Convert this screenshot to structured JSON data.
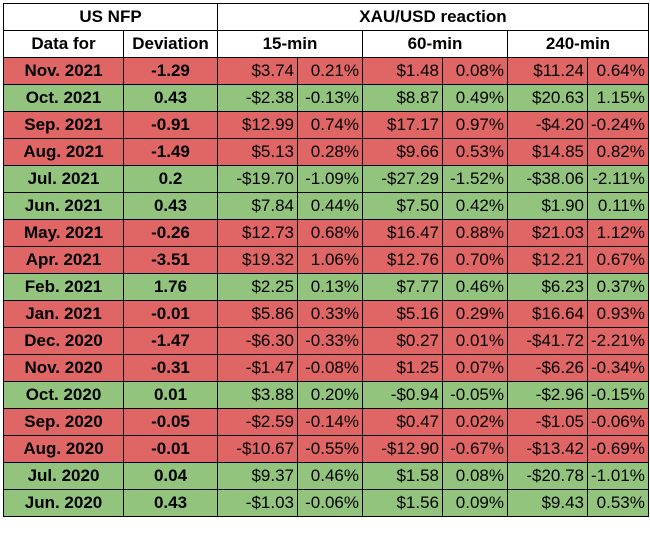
{
  "header": {
    "group_left": "US NFP",
    "group_right": "XAU/USD reaction",
    "col_date": "Data for",
    "col_deviation": "Deviation",
    "col_15": "15-min",
    "col_60": "60-min",
    "col_240": "240-min"
  },
  "colors": {
    "negative_row": "#e06666",
    "positive_row": "#93c47d"
  },
  "rows": [
    {
      "date": "Nov. 2021",
      "deviation": "-1.29",
      "d15": "$3.74",
      "p15": "0.21%",
      "d60": "$1.48",
      "p60": "0.08%",
      "d240": "$11.24",
      "p240": "0.64%",
      "tone": "red"
    },
    {
      "date": "Oct. 2021",
      "deviation": "0.43",
      "d15": "-$2.38",
      "p15": "-0.13%",
      "d60": "$8.87",
      "p60": "0.49%",
      "d240": "$20.63",
      "p240": "1.15%",
      "tone": "green"
    },
    {
      "date": "Sep. 2021",
      "deviation": "-0.91",
      "d15": "$12.99",
      "p15": "0.74%",
      "d60": "$17.17",
      "p60": "0.97%",
      "d240": "-$4.20",
      "p240": "-0.24%",
      "tone": "red"
    },
    {
      "date": "Aug. 2021",
      "deviation": "-1.49",
      "d15": "$5.13",
      "p15": "0.28%",
      "d60": "$9.66",
      "p60": "0.53%",
      "d240": "$14.85",
      "p240": "0.82%",
      "tone": "red"
    },
    {
      "date": "Jul. 2021",
      "deviation": "0.2",
      "d15": "-$19.70",
      "p15": "-1.09%",
      "d60": "-$27.29",
      "p60": "-1.52%",
      "d240": "-$38.06",
      "p240": "-2.11%",
      "tone": "green"
    },
    {
      "date": "Jun. 2021",
      "deviation": "0.43",
      "d15": "$7.84",
      "p15": "0.44%",
      "d60": "$7.50",
      "p60": "0.42%",
      "d240": "$1.90",
      "p240": "0.11%",
      "tone": "green"
    },
    {
      "date": "May. 2021",
      "deviation": "-0.26",
      "d15": "$12.73",
      "p15": "0.68%",
      "d60": "$16.47",
      "p60": "0.88%",
      "d240": "$21.03",
      "p240": "1.12%",
      "tone": "red"
    },
    {
      "date": "Apr. 2021",
      "deviation": "-3.51",
      "d15": "$19.32",
      "p15": "1.06%",
      "d60": "$12.76",
      "p60": "0.70%",
      "d240": "$12.21",
      "p240": "0.67%",
      "tone": "red"
    },
    {
      "date": "Feb. 2021",
      "deviation": "1.76",
      "d15": "$2.25",
      "p15": "0.13%",
      "d60": "$7.77",
      "p60": "0.46%",
      "d240": "$6.23",
      "p240": "0.37%",
      "tone": "green"
    },
    {
      "date": "Jan. 2021",
      "deviation": "-0.01",
      "d15": "$5.86",
      "p15": "0.33%",
      "d60": "$5.16",
      "p60": "0.29%",
      "d240": "$16.64",
      "p240": "0.93%",
      "tone": "red"
    },
    {
      "date": "Dec. 2020",
      "deviation": "-1.47",
      "d15": "-$6.30",
      "p15": "-0.33%",
      "d60": "$0.27",
      "p60": "0.01%",
      "d240": "-$41.72",
      "p240": "-2.21%",
      "tone": "red"
    },
    {
      "date": "Nov. 2020",
      "deviation": "-0.31",
      "d15": "-$1.47",
      "p15": "-0.08%",
      "d60": "$1.25",
      "p60": "0.07%",
      "d240": "-$6.26",
      "p240": "-0.34%",
      "tone": "red"
    },
    {
      "date": "Oct. 2020",
      "deviation": "0.01",
      "d15": "$3.88",
      "p15": "0.20%",
      "d60": "-$0.94",
      "p60": "-0.05%",
      "d240": "-$2.96",
      "p240": "-0.15%",
      "tone": "green"
    },
    {
      "date": "Sep. 2020",
      "deviation": "-0.05",
      "d15": "-$2.59",
      "p15": "-0.14%",
      "d60": "$0.47",
      "p60": "0.02%",
      "d240": "-$1.05",
      "p240": "-0.06%",
      "tone": "red"
    },
    {
      "date": "Aug. 2020",
      "deviation": "-0.01",
      "d15": "-$10.67",
      "p15": "-0.55%",
      "d60": "-$12.90",
      "p60": "-0.67%",
      "d240": "-$13.42",
      "p240": "-0.69%",
      "tone": "red"
    },
    {
      "date": "Jul. 2020",
      "deviation": "0.04",
      "d15": "$9.37",
      "p15": "0.46%",
      "d60": "$1.58",
      "p60": "0.08%",
      "d240": "-$20.78",
      "p240": "-1.01%",
      "tone": "green"
    },
    {
      "date": "Jun. 2020",
      "deviation": "0.43",
      "d15": "-$1.03",
      "p15": "-0.06%",
      "d60": "$1.56",
      "p60": "0.09%",
      "d240": "$9.43",
      "p240": "0.53%",
      "tone": "green"
    }
  ]
}
